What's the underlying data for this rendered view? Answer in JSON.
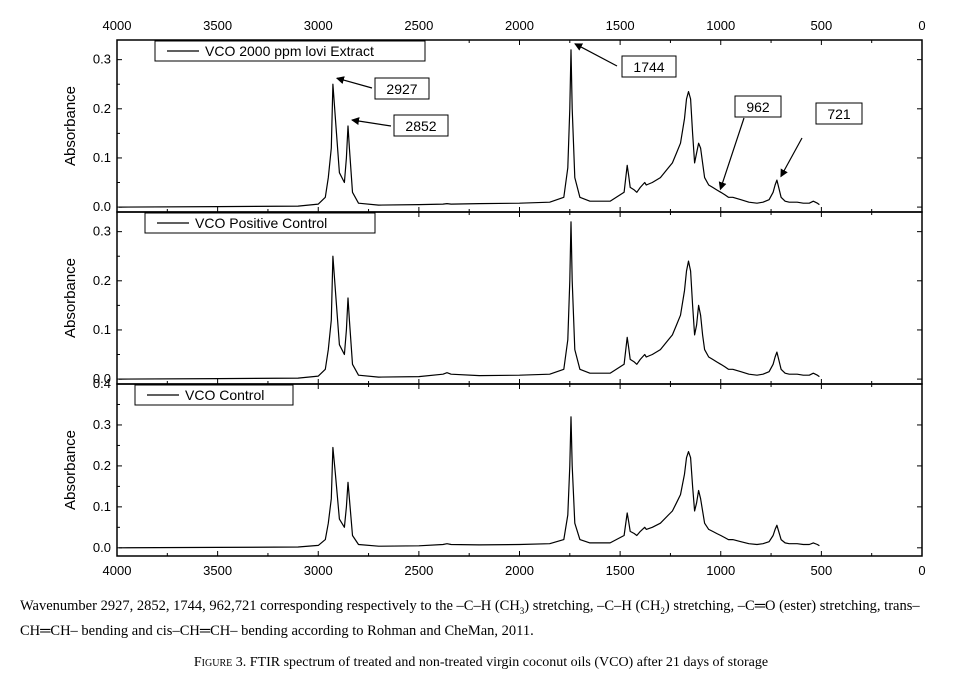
{
  "chart_data": {
    "type": "line",
    "x_axis": {
      "range": [
        4000,
        0
      ],
      "reversed": true,
      "ticks": [
        4000,
        3500,
        3000,
        2500,
        2000,
        1500,
        1000,
        500,
        0
      ],
      "tick_labels": [
        "4000",
        "3500",
        "3000",
        "2500",
        "2000",
        "1500",
        "1000",
        "500",
        "0"
      ]
    },
    "grid": false,
    "panels": [
      {
        "legend": "VCO 2000 ppm lovi Extract",
        "legend_position": "top-left",
        "ylabel": "Absorbance",
        "ylim": [
          -0.01,
          0.34
        ],
        "yticks": [
          "0.0",
          "0.1",
          "0.2",
          "0.3"
        ],
        "series": [
          {
            "name": "VCO 2000 ppm lovi Extract",
            "x": [
              3990,
              3500,
              3100,
              3000,
              2965,
              2950,
              2935,
              2927,
              2915,
              2895,
              2870,
              2860,
              2852,
              2845,
              2830,
              2800,
              2700,
              2500,
              2380,
              2360,
              2340,
              2200,
              2000,
              1850,
              1780,
              1760,
              1750,
              1744,
              1738,
              1725,
              1700,
              1650,
              1550,
              1480,
              1465,
              1458,
              1450,
              1430,
              1417,
              1400,
              1378,
              1370,
              1340,
              1300,
              1260,
              1240,
              1220,
              1200,
              1180,
              1170,
              1160,
              1150,
              1140,
              1130,
              1120,
              1110,
              1100,
              1090,
              1080,
              1060,
              1040,
              1020,
              1000,
              980,
              962,
              940,
              900,
              860,
              820,
              790,
              760,
              740,
              730,
              721,
              712,
              700,
              680,
              660,
              620,
              590,
              560,
              540,
              520,
              510
            ],
            "y": [
              0.0,
              0.001,
              0.002,
              0.006,
              0.02,
              0.06,
              0.12,
              0.25,
              0.18,
              0.07,
              0.05,
              0.1,
              0.165,
              0.12,
              0.03,
              0.008,
              0.004,
              0.005,
              0.006,
              0.007,
              0.006,
              0.007,
              0.008,
              0.01,
              0.02,
              0.08,
              0.2,
              0.32,
              0.2,
              0.06,
              0.02,
              0.012,
              0.012,
              0.03,
              0.085,
              0.065,
              0.04,
              0.035,
              0.03,
              0.04,
              0.05,
              0.045,
              0.05,
              0.06,
              0.08,
              0.09,
              0.11,
              0.13,
              0.18,
              0.22,
              0.235,
              0.22,
              0.15,
              0.09,
              0.11,
              0.13,
              0.12,
              0.09,
              0.06,
              0.045,
              0.04,
              0.035,
              0.03,
              0.025,
              0.02,
              0.02,
              0.015,
              0.01,
              0.008,
              0.01,
              0.015,
              0.03,
              0.045,
              0.055,
              0.04,
              0.02,
              0.012,
              0.01,
              0.01,
              0.008,
              0.008,
              0.012,
              0.008,
              0.005
            ]
          }
        ],
        "annotations": [
          {
            "label": "2927",
            "x": 2927,
            "y": 0.25
          },
          {
            "label": "2852",
            "x": 2852,
            "y": 0.165
          },
          {
            "label": "1744",
            "x": 1744,
            "y": 0.32
          },
          {
            "label": "962",
            "x": 962,
            "y": 0.02
          },
          {
            "label": "721",
            "x": 721,
            "y": 0.05
          }
        ]
      },
      {
        "legend": "VCO Positive Control",
        "legend_position": "top-left",
        "ylabel": "Absorbance",
        "ylim": [
          -0.01,
          0.34
        ],
        "yticks": [
          "0.0",
          "0.1",
          "0.2",
          "0.3"
        ],
        "series": [
          {
            "name": "VCO Positive Control",
            "x": [
              3990,
              3500,
              3100,
              3000,
              2965,
              2950,
              2935,
              2927,
              2915,
              2895,
              2870,
              2860,
              2852,
              2845,
              2830,
              2800,
              2700,
              2500,
              2380,
              2360,
              2340,
              2200,
              2000,
              1850,
              1780,
              1760,
              1750,
              1744,
              1738,
              1725,
              1700,
              1650,
              1550,
              1480,
              1465,
              1458,
              1450,
              1430,
              1417,
              1400,
              1378,
              1370,
              1340,
              1300,
              1260,
              1240,
              1220,
              1200,
              1180,
              1170,
              1160,
              1150,
              1140,
              1130,
              1120,
              1110,
              1100,
              1090,
              1080,
              1060,
              1040,
              1020,
              1000,
              980,
              962,
              940,
              900,
              860,
              820,
              790,
              760,
              740,
              730,
              721,
              712,
              700,
              680,
              660,
              620,
              590,
              560,
              540,
              520,
              510
            ],
            "y": [
              0.0,
              0.001,
              0.002,
              0.006,
              0.02,
              0.06,
              0.12,
              0.25,
              0.18,
              0.07,
              0.05,
              0.1,
              0.165,
              0.12,
              0.03,
              0.008,
              0.004,
              0.005,
              0.01,
              0.013,
              0.01,
              0.007,
              0.008,
              0.01,
              0.02,
              0.08,
              0.2,
              0.32,
              0.2,
              0.06,
              0.02,
              0.012,
              0.012,
              0.03,
              0.085,
              0.065,
              0.04,
              0.035,
              0.03,
              0.04,
              0.05,
              0.045,
              0.05,
              0.06,
              0.08,
              0.09,
              0.11,
              0.13,
              0.18,
              0.22,
              0.24,
              0.22,
              0.15,
              0.09,
              0.11,
              0.15,
              0.13,
              0.09,
              0.06,
              0.045,
              0.04,
              0.035,
              0.03,
              0.025,
              0.02,
              0.02,
              0.015,
              0.01,
              0.008,
              0.01,
              0.015,
              0.03,
              0.045,
              0.055,
              0.04,
              0.02,
              0.012,
              0.01,
              0.01,
              0.008,
              0.008,
              0.012,
              0.008,
              0.005
            ]
          }
        ]
      },
      {
        "legend": "VCO Control",
        "legend_position": "top-left",
        "ylabel": "Absorbance",
        "ylim": [
          -0.02,
          0.4
        ],
        "yticks": [
          "0.0",
          "0.1",
          "0.2",
          "0.3",
          "0.4"
        ],
        "series": [
          {
            "name": "VCO Control",
            "x": [
              3990,
              3500,
              3100,
              3000,
              2965,
              2950,
              2935,
              2927,
              2915,
              2895,
              2870,
              2860,
              2852,
              2845,
              2830,
              2800,
              2700,
              2500,
              2380,
              2360,
              2340,
              2200,
              2000,
              1850,
              1780,
              1760,
              1750,
              1744,
              1738,
              1725,
              1700,
              1650,
              1550,
              1480,
              1465,
              1458,
              1450,
              1430,
              1417,
              1400,
              1378,
              1370,
              1340,
              1300,
              1260,
              1240,
              1220,
              1200,
              1180,
              1170,
              1160,
              1150,
              1140,
              1130,
              1120,
              1110,
              1100,
              1090,
              1080,
              1060,
              1040,
              1020,
              1000,
              980,
              962,
              940,
              900,
              860,
              820,
              790,
              760,
              740,
              730,
              721,
              712,
              700,
              680,
              660,
              620,
              590,
              560,
              540,
              520,
              510
            ],
            "y": [
              0.0,
              0.001,
              0.002,
              0.006,
              0.02,
              0.06,
              0.12,
              0.245,
              0.18,
              0.07,
              0.05,
              0.1,
              0.16,
              0.12,
              0.03,
              0.008,
              0.004,
              0.005,
              0.008,
              0.01,
              0.008,
              0.007,
              0.008,
              0.01,
              0.02,
              0.08,
              0.2,
              0.32,
              0.2,
              0.06,
              0.02,
              0.012,
              0.012,
              0.03,
              0.085,
              0.065,
              0.04,
              0.035,
              0.03,
              0.04,
              0.05,
              0.045,
              0.05,
              0.06,
              0.08,
              0.09,
              0.11,
              0.13,
              0.18,
              0.22,
              0.235,
              0.22,
              0.15,
              0.09,
              0.11,
              0.14,
              0.12,
              0.09,
              0.06,
              0.045,
              0.04,
              0.035,
              0.03,
              0.025,
              0.02,
              0.02,
              0.015,
              0.01,
              0.008,
              0.01,
              0.015,
              0.03,
              0.045,
              0.055,
              0.04,
              0.02,
              0.012,
              0.01,
              0.01,
              0.008,
              0.008,
              0.012,
              0.008,
              0.005
            ]
          }
        ]
      }
    ]
  },
  "note": {
    "before_ch3": "Wavenumber 2927, 2852, 1744, 962,721 corresponding respectively to the –C–H (CH",
    "sub_ch3": "3",
    "before_ch2": ") stretching,  –C–H (CH",
    "sub_ch2": "2",
    "rest": ") stretching, –C═O (ester) stretching, trans–CH═CH– bending and cis–CH═CH– bending according to Rohman and CheMan, 2011."
  },
  "caption": {
    "label": "Figure 3.",
    "text": " FTIR spectrum of treated and non-treated virgin coconut oils (VCO) after 21 days of storage"
  }
}
